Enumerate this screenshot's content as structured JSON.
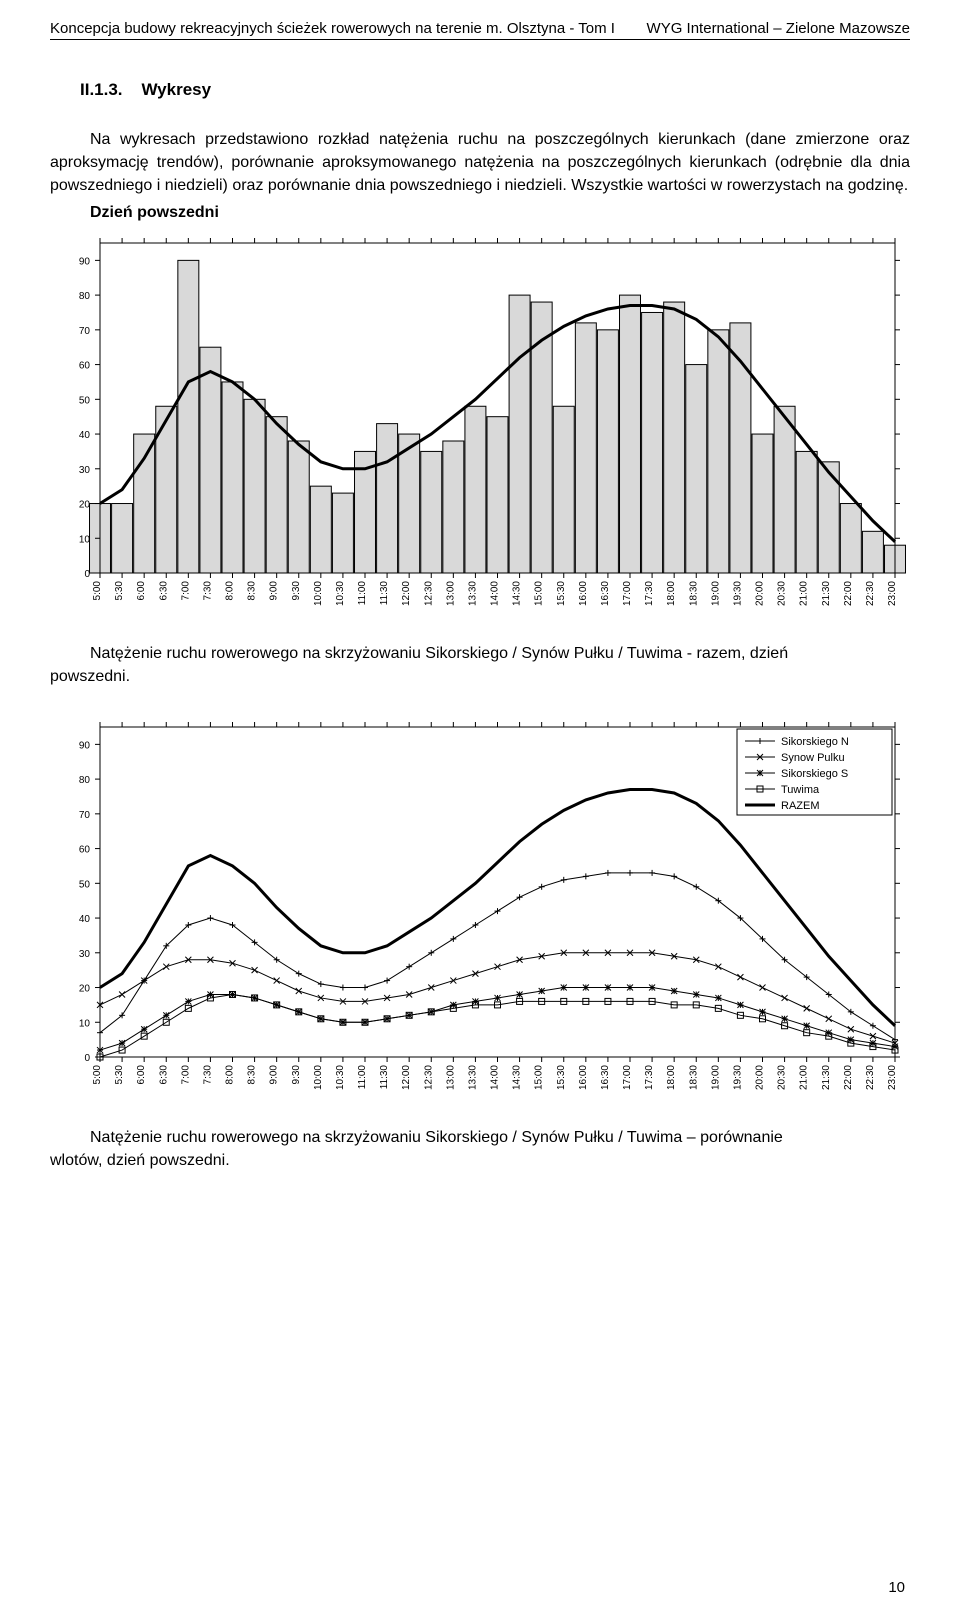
{
  "header": {
    "left": "Koncepcja budowy rekreacyjnych ścieżek rowerowych na terenie m. Olsztyna  - Tom I",
    "right": "WYG International – Zielone Mazowsze"
  },
  "section": {
    "number": "II.1.3.",
    "title": "Wykresy"
  },
  "paragraph": "Na wykresach przedstawiono rozkład natężenia ruchu na poszczególnych kierunkach (dane zmierzone oraz aproksymację trendów), porównanie aproksymowanego natężenia na poszczególnych kierunkach (odrębnie dla dnia powszedniego i niedzieli) oraz porównanie dnia powszedniego i niedzieli. Wszystkie wartości w rowerzystach na godzinę.",
  "subheading": "Dzień powszedni",
  "caption1_line1": "Natężenie ruchu rowerowego na skrzyżowaniu Sikorskiego / Synów Pułku / Tuwima - razem, dzień",
  "caption1_line2": "powszedni.",
  "caption2_line1": "Natężenie ruchu rowerowego na skrzyżowaniu Sikorskiego / Synów Pułku / Tuwima – porównanie",
  "caption2_line2": "wlotów, dzień powszedni.",
  "page_number": "10",
  "chart1": {
    "type": "bar+line",
    "ylim": [
      0,
      95
    ],
    "yticks": [
      0,
      10,
      20,
      30,
      40,
      50,
      60,
      70,
      80,
      90
    ],
    "xlabels": [
      "5:00",
      "5:30",
      "6:00",
      "6:30",
      "7:00",
      "7:30",
      "8:00",
      "8:30",
      "9:00",
      "9:30",
      "10:00",
      "10:30",
      "11:00",
      "11:30",
      "12:00",
      "12:30",
      "13:00",
      "13:30",
      "14:00",
      "14:30",
      "15:00",
      "15:30",
      "16:00",
      "16:30",
      "17:00",
      "17:30",
      "18:00",
      "18:30",
      "19:00",
      "19:30",
      "20:00",
      "20:30",
      "21:00",
      "21:30",
      "22:00",
      "22:30",
      "23:00"
    ],
    "bars": [
      20,
      20,
      40,
      48,
      90,
      65,
      55,
      50,
      45,
      38,
      25,
      23,
      35,
      43,
      40,
      35,
      38,
      48,
      45,
      80,
      78,
      48,
      72,
      70,
      80,
      75,
      78,
      60,
      70,
      72,
      40,
      48,
      35,
      32,
      20,
      12,
      8
    ],
    "bar_color": "#d9d9d9",
    "bar_border": "#000000",
    "curve": [
      20,
      24,
      33,
      44,
      55,
      58,
      55,
      50,
      43,
      37,
      32,
      30,
      30,
      32,
      36,
      40,
      45,
      50,
      56,
      62,
      67,
      71,
      74,
      76,
      77,
      77,
      76,
      73,
      68,
      61,
      53,
      45,
      37,
      29,
      22,
      15,
      9
    ],
    "curve_color": "#000000",
    "curve_width": 3,
    "bg": "#ffffff",
    "axis_color": "#000000",
    "label_fontsize": 10
  },
  "chart2": {
    "type": "line-multi",
    "ylim": [
      0,
      95
    ],
    "yticks": [
      0,
      10,
      20,
      30,
      40,
      50,
      60,
      70,
      80,
      90
    ],
    "xlabels": [
      "5:00",
      "5:30",
      "6:00",
      "6:30",
      "7:00",
      "7:30",
      "8:00",
      "8:30",
      "9:00",
      "9:30",
      "10:00",
      "10:30",
      "11:00",
      "11:30",
      "12:00",
      "12:30",
      "13:00",
      "13:30",
      "14:00",
      "14:30",
      "15:00",
      "15:30",
      "16:00",
      "16:30",
      "17:00",
      "17:30",
      "18:00",
      "18:30",
      "19:00",
      "19:30",
      "20:00",
      "20:30",
      "21:00",
      "21:30",
      "22:00",
      "22:30",
      "23:00"
    ],
    "legend": {
      "items": [
        {
          "label": "Sikorskiego N",
          "marker": "plus"
        },
        {
          "label": "Synow Pulku",
          "marker": "cross"
        },
        {
          "label": "Sikorskiego S",
          "marker": "star"
        },
        {
          "label": "Tuwima",
          "marker": "square"
        },
        {
          "label": "RAZEM",
          "marker": "line"
        }
      ]
    },
    "series": {
      "sikorskiego_n": [
        7,
        12,
        22,
        32,
        38,
        40,
        38,
        33,
        28,
        24,
        21,
        20,
        20,
        22,
        26,
        30,
        34,
        38,
        42,
        46,
        49,
        51,
        52,
        53,
        53,
        53,
        52,
        49,
        45,
        40,
        34,
        28,
        23,
        18,
        13,
        9,
        5
      ],
      "synow_pulku": [
        15,
        18,
        22,
        26,
        28,
        28,
        27,
        25,
        22,
        19,
        17,
        16,
        16,
        17,
        18,
        20,
        22,
        24,
        26,
        28,
        29,
        30,
        30,
        30,
        30,
        30,
        29,
        28,
        26,
        23,
        20,
        17,
        14,
        11,
        8,
        6,
        4
      ],
      "sikorskiego_s": [
        2,
        4,
        8,
        12,
        16,
        18,
        18,
        17,
        15,
        13,
        11,
        10,
        10,
        11,
        12,
        13,
        15,
        16,
        17,
        18,
        19,
        20,
        20,
        20,
        20,
        20,
        19,
        18,
        17,
        15,
        13,
        11,
        9,
        7,
        5,
        4,
        3
      ],
      "tuwima": [
        0,
        2,
        6,
        10,
        14,
        17,
        18,
        17,
        15,
        13,
        11,
        10,
        10,
        11,
        12,
        13,
        14,
        15,
        15,
        16,
        16,
        16,
        16,
        16,
        16,
        16,
        15,
        15,
        14,
        12,
        11,
        9,
        7,
        6,
        4,
        3,
        2
      ],
      "razem": [
        20,
        24,
        33,
        44,
        55,
        58,
        55,
        50,
        43,
        37,
        32,
        30,
        30,
        32,
        36,
        40,
        45,
        50,
        56,
        62,
        67,
        71,
        74,
        76,
        77,
        77,
        76,
        73,
        68,
        61,
        53,
        45,
        37,
        29,
        22,
        15,
        9
      ]
    },
    "line_color": "#000000",
    "line_width_razem": 3,
    "line_width_other": 1,
    "bg": "#ffffff",
    "axis_color": "#000000",
    "label_fontsize": 10
  }
}
